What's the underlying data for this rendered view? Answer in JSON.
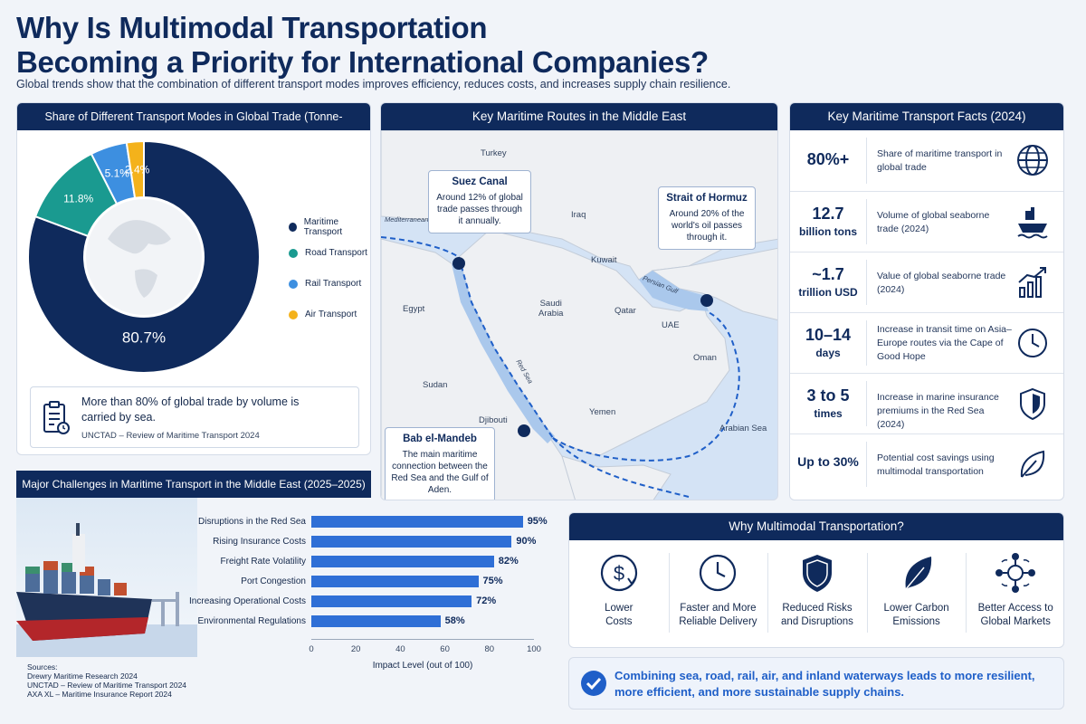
{
  "header": {
    "title_line1": "Why Is Multimodal Transportation",
    "title_line2": "Becoming a Priority for International Companies?",
    "subtitle": "Global trends show that the combination of different transport modes improves efficiency, reduces costs, and increases supply chain resilience."
  },
  "colors": {
    "navy": "#0f2a5c",
    "teal": "#1a9a90",
    "light_blue": "#3d8fe0",
    "gold": "#f4b21b",
    "bar_blue": "#2f6fd6"
  },
  "share_panel": {
    "title": "Share of Different Transport Modes in Global Trade (Tonne-Kilometers)",
    "note_text": "More than 80% of global trade by volume is carried by sea.",
    "note_source": "UNCTAD – Review of Maritime Transport 2024",
    "note_icon": "clipboard-icon"
  },
  "map_panel": {
    "title": "Key Maritime Routes in the Middle East",
    "labels": {
      "turkey": "Turkey",
      "mediterranean": "Mediterranean",
      "iraq": "Iraq",
      "kuwait": "Kuwait",
      "egypt": "Egypt",
      "saudi": "Saudi\nArabia",
      "qatar": "Qatar",
      "uae": "UAE",
      "oman": "Oman",
      "sudan": "Sudan",
      "yemen": "Yemen",
      "djibouti": "Djibouti",
      "arabian_sea": "Arabian Sea",
      "red_sea": "Red Sea",
      "persian_gulf": "Persian Gulf"
    },
    "suez": {
      "title": "Suez Canal",
      "text": "Around 12% of global trade passes through it annually."
    },
    "hormuz": {
      "title": "Strait of Hormuz",
      "text": "Around 20% of the world's oil passes through it."
    },
    "mandeb": {
      "title": "Bab el-Mandeb",
      "text": "The main maritime connection between the Red Sea and the Gulf of Aden."
    }
  },
  "facts_panel": {
    "title": "Key Maritime Transport Facts (2024)",
    "facts": [
      {
        "value": "80%+",
        "unit": "",
        "desc": "Share of maritime transport in global trade",
        "icon": "globe-icon"
      },
      {
        "value": "12.7",
        "unit": "billion tons",
        "desc": "Volume of global seaborne trade (2024)",
        "icon": "ship-icon"
      },
      {
        "value": "~1.7",
        "unit": "trillion USD",
        "desc": "Value of global seaborne trade (2024)",
        "icon": "growth-chart-icon"
      },
      {
        "value": "10–14",
        "unit": "days",
        "desc": "Increase in transit time on Asia–Europe routes via the Cape of Good Hope",
        "icon": "clock-icon"
      },
      {
        "value": "3 to 5",
        "unit": "times",
        "desc": "Increase in marine insurance premiums in the Red Sea (2024)",
        "icon": "shield-icon"
      },
      {
        "value": "Up to 30%",
        "unit": "",
        "desc": "Potential cost savings using multimodal transportation",
        "icon": "leaf-icon"
      }
    ]
  },
  "challenges_panel": {
    "title": "Major Challenges in Maritime Transport in the Middle East (2025–2025)",
    "sources_title": "Sources:",
    "sources": [
      "Drewry Maritime Research 2024",
      "UNCTAD – Review of Maritime Transport 2024",
      "AXA XL – Maritime Insurance Report 2024"
    ]
  },
  "why_panel": {
    "title": "Why Multimodal Transportation?",
    "benefits": [
      {
        "line1": "Lower",
        "line2": "Costs",
        "icon": "dollar-icon"
      },
      {
        "line1": "Faster and More",
        "line2": "Reliable Delivery",
        "icon": "clock-icon"
      },
      {
        "line1": "Reduced Risks",
        "line2": "and Disruptions",
        "icon": "shield-icon"
      },
      {
        "line1": "Lower Carbon",
        "line2": "Emissions",
        "icon": "leaf-icon"
      },
      {
        "line1": "Better Access to",
        "line2": "Global Markets",
        "icon": "network-icon"
      }
    ],
    "conclusion_line1": "Combining sea, road, rail, air, and inland waterways leads to more resilient,",
    "conclusion_line2": "more efficient, and more sustainable supply chains."
  },
  "chart_data": [
    {
      "type": "pie",
      "title": "Share of Different Transport Modes in Global Trade (Tonne-Kilometers)",
      "categories": [
        "Maritime Transport",
        "Road Transport",
        "Rail Transport",
        "Air Transport"
      ],
      "values": [
        80.7,
        11.8,
        5.1,
        2.4
      ],
      "labels": [
        "80.7%",
        "11.8%",
        "5.1%",
        "2.4%"
      ],
      "colors": [
        "#0f2a5c",
        "#1a9a90",
        "#3d8fe0",
        "#f4b21b"
      ],
      "legend": "right"
    },
    {
      "type": "bar",
      "orientation": "horizontal",
      "title": "Major Challenges in Maritime Transport in the Middle East (2025–2025)",
      "categories": [
        "Disruptions in the Red Sea",
        "Rising Insurance Costs",
        "Freight Rate Volatility",
        "Port Congestion",
        "Increasing Operational Costs",
        "Environmental Regulations"
      ],
      "values": [
        95,
        90,
        82,
        75,
        72,
        58
      ],
      "labels": [
        "95%",
        "90%",
        "82%",
        "75%",
        "72%",
        "58%"
      ],
      "xlabel": "Impact Level (out of 100)",
      "xlim": [
        0,
        100
      ],
      "xticks": [
        "0",
        "20",
        "40",
        "60",
        "80",
        "100"
      ],
      "grid": false
    }
  ]
}
